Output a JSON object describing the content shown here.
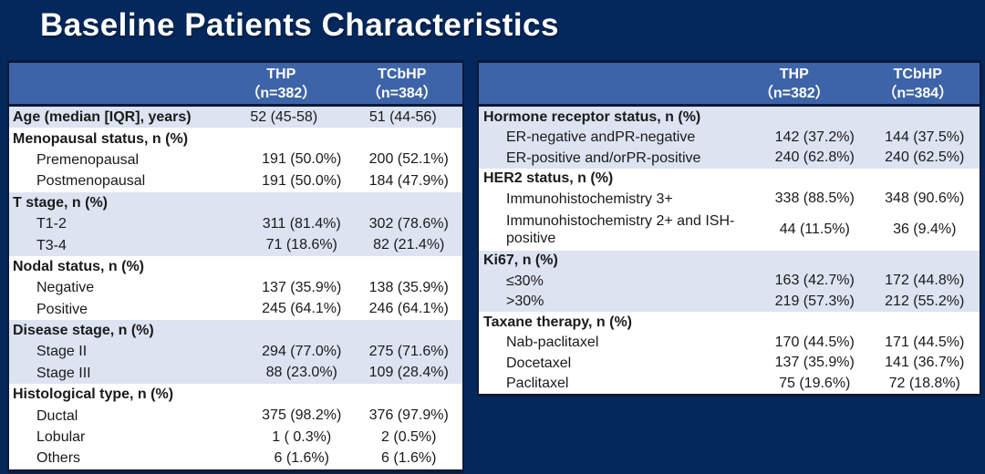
{
  "slide": {
    "title": "Baseline Patients Characteristics"
  },
  "colors": {
    "background": "#05285c",
    "header_blue": "#3d63a9",
    "row_shade": "#dce3f1",
    "row_plain": "#ffffff",
    "border_dark": "#0c1a36",
    "title_text": "#ffffff",
    "text_dark": "#1a1a1a"
  },
  "left_table": {
    "columns": [
      {
        "name": "THP",
        "n": "（n=382）"
      },
      {
        "name": "TCbHP",
        "n": "（n=384）"
      }
    ],
    "rows": [
      {
        "label": "Age (median [IQR], years)",
        "thp": "52 (45-58)",
        "tcbhp": "51 (44-56)"
      },
      {
        "label": "Menopausal status, n (%)"
      },
      {
        "label": "Premenopausal",
        "thp": "191 (50.0%)",
        "tcbhp": "200 (52.1%)"
      },
      {
        "label": "Postmenopausal",
        "thp": "191 (50.0%)",
        "tcbhp": "184 (47.9%)"
      },
      {
        "label": "T stage, n (%)"
      },
      {
        "label": "T1-2",
        "thp": "311 (81.4%)",
        "tcbhp": "302 (78.6%)"
      },
      {
        "label": "T3-4",
        "thp": "71 (18.6%)",
        "tcbhp": "82 (21.4%)"
      },
      {
        "label": "Nodal status, n (%)"
      },
      {
        "label": "Negative",
        "thp": "137 (35.9%)",
        "tcbhp": "138 (35.9%)"
      },
      {
        "label": "Positive",
        "thp": "245 (64.1%)",
        "tcbhp": "246 (64.1%)"
      },
      {
        "label": "Disease stage, n (%)"
      },
      {
        "label": "Stage II",
        "thp": "294 (77.0%)",
        "tcbhp": "275 (71.6%)"
      },
      {
        "label": "Stage III",
        "thp": "88 (23.0%)",
        "tcbhp": "109 (28.4%)"
      },
      {
        "label": "Histological type, n (%)"
      },
      {
        "label": "Ductal",
        "thp": "375 (98.2%)",
        "tcbhp": "376 (97.9%)"
      },
      {
        "label": "Lobular",
        "thp": "1 ( 0.3%)",
        "tcbhp": "2 (0.5%)"
      },
      {
        "label": "Others",
        "thp": "6 (1.6%)",
        "tcbhp": "6 (1.6%)"
      }
    ]
  },
  "right_table": {
    "columns": [
      {
        "name": "THP",
        "n": "（n=382）"
      },
      {
        "name": "TCbHP",
        "n": "（n=384）"
      }
    ],
    "rows": [
      {
        "label": "Hormone receptor status, n (%)"
      },
      {
        "label": "ER-negative andPR-negative",
        "thp": "142 (37.2%)",
        "tcbhp": "144 (37.5%)"
      },
      {
        "label": "ER-positive and/orPR-positive",
        "thp": "240 (62.8%)",
        "tcbhp": "240 (62.5%)"
      },
      {
        "label": "HER2 status, n (%)"
      },
      {
        "label": "Immunohistochemistry 3+",
        "thp": "338 (88.5%)",
        "tcbhp": "348 (90.6%)"
      },
      {
        "label": "Immunohistochemistry 2+ and ISH-positive",
        "thp": "44 (11.5%)",
        "tcbhp": "36 (9.4%)"
      },
      {
        "label": "Ki67, n (%)"
      },
      {
        "label": "≤30%",
        "thp": "163 (42.7%)",
        "tcbhp": "172 (44.8%)"
      },
      {
        "label": ">30%",
        "thp": "219 (57.3%)",
        "tcbhp": "212 (55.2%)"
      },
      {
        "label": "Taxane therapy, n (%)"
      },
      {
        "label": "Nab-paclitaxel",
        "thp": "170 (44.5%)",
        "tcbhp": "171 (44.5%)"
      },
      {
        "label": "Docetaxel",
        "thp": "137 (35.9%)",
        "tcbhp": "141 (36.7%)"
      },
      {
        "label": "Paclitaxel",
        "thp": "75 (19.6%)",
        "tcbhp": "72 (18.8%)"
      }
    ]
  }
}
